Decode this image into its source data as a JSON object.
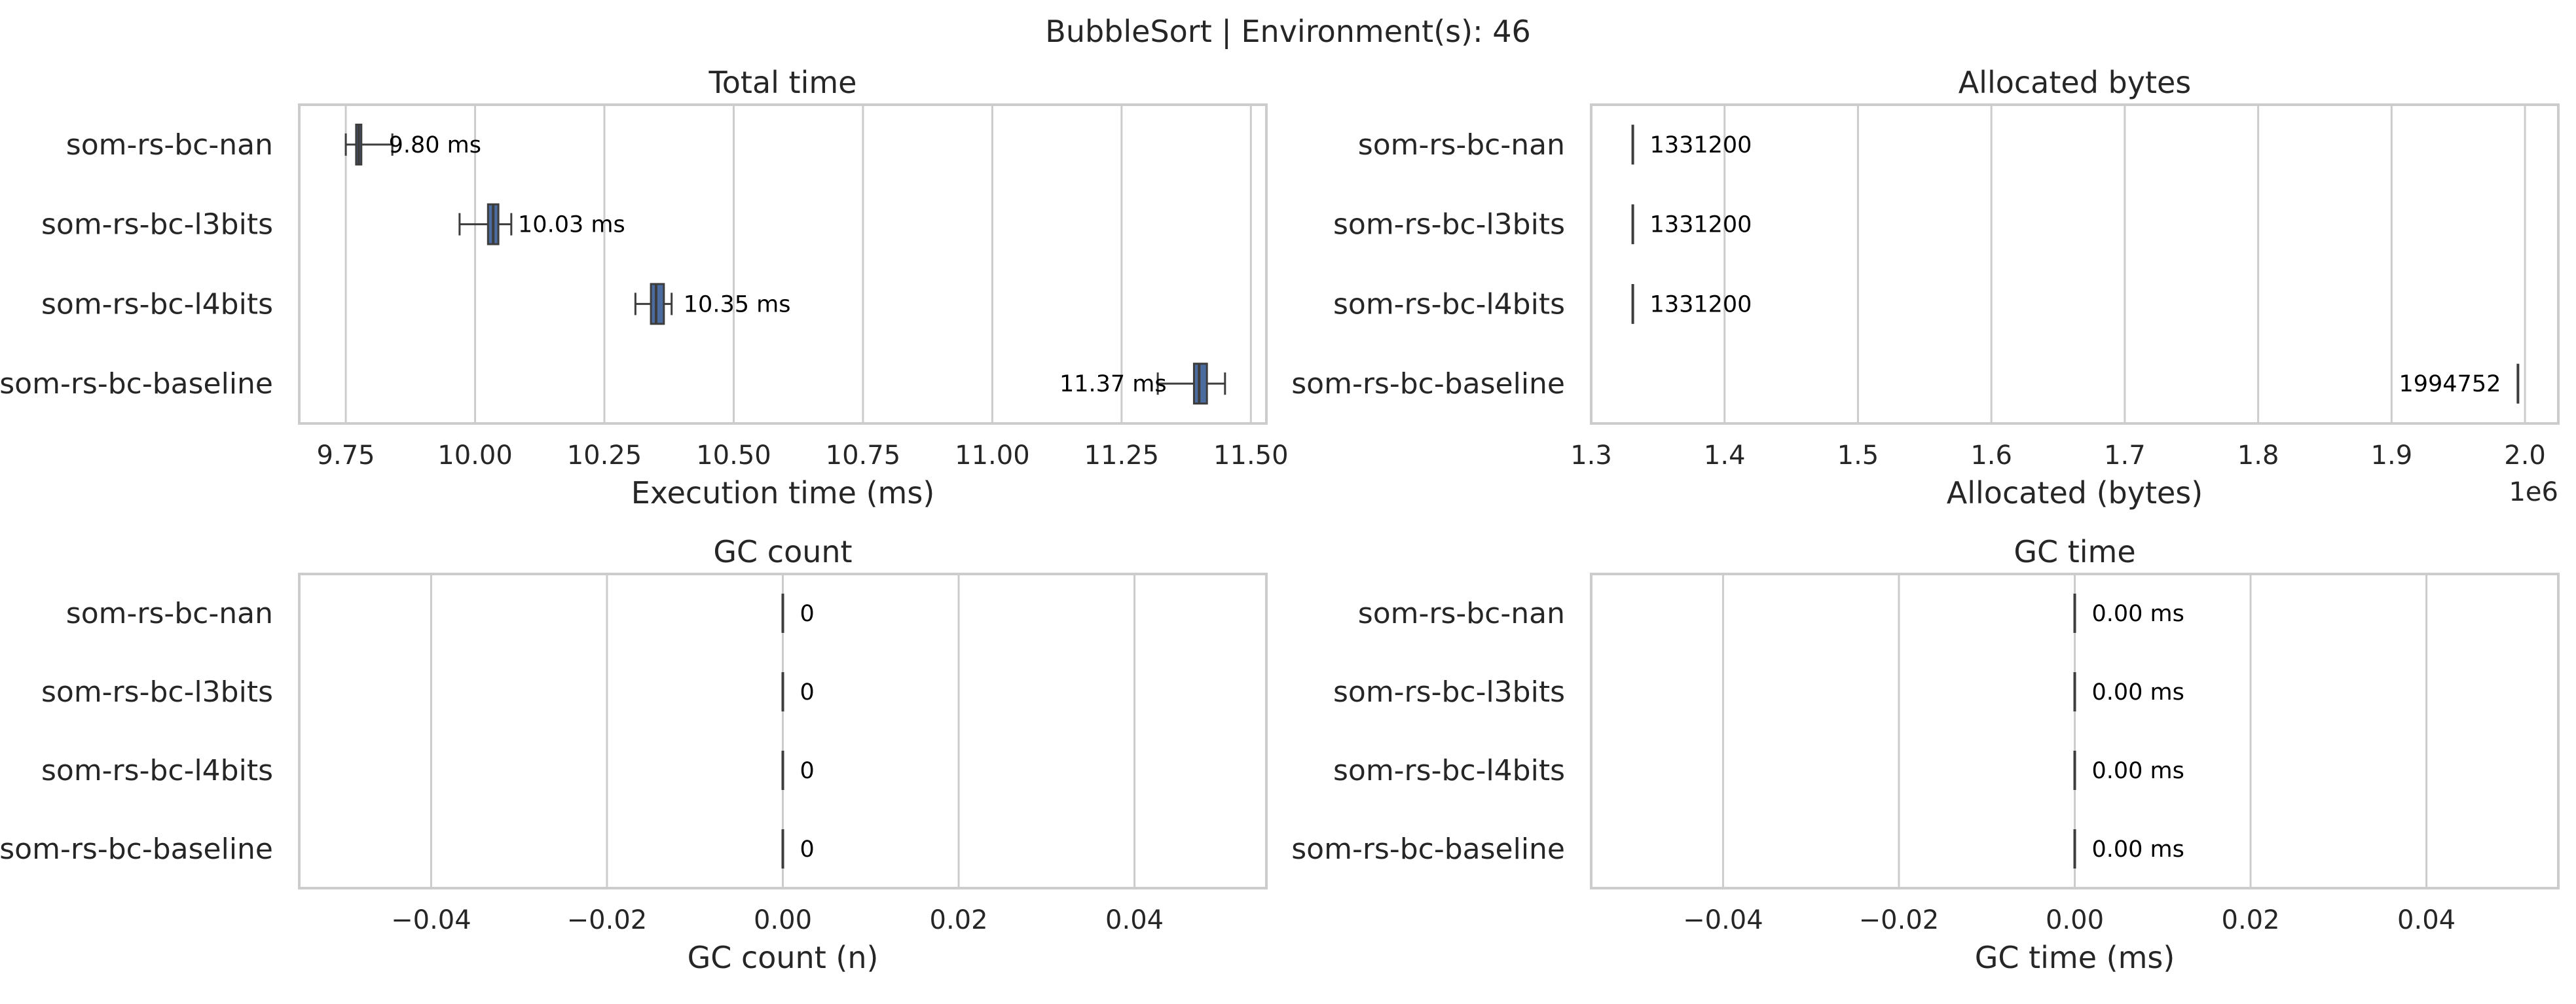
{
  "figure": {
    "title": "BubbleSort | Environment(s): 46"
  },
  "colors": {
    "box_fill": "#4c6b9f",
    "box_edge": "#3d3d3d",
    "grid": "#cccccc",
    "frame": "#cccccc"
  },
  "chart_data": [
    {
      "type": "box",
      "title": "Total time",
      "xlabel": "Execution time (ms)",
      "xlim": [
        9.66,
        11.53
      ],
      "xticks": [
        9.75,
        10.0,
        10.25,
        10.5,
        10.75,
        11.0,
        11.25,
        11.5
      ],
      "xtick_labels": [
        "9.75",
        "10.00",
        "10.25",
        "10.50",
        "10.75",
        "11.00",
        "11.25",
        "11.50"
      ],
      "offset_label": "",
      "categories": [
        "som-rs-bc-nan",
        "som-rs-bc-l3bits",
        "som-rs-bc-l4bits",
        "som-rs-bc-baseline"
      ],
      "boxes": [
        {
          "min": 9.75,
          "q1": 9.77,
          "median": 9.775,
          "q3": 9.78,
          "max": 9.84
        },
        {
          "min": 9.97,
          "q1": 10.025,
          "median": 10.035,
          "q3": 10.045,
          "max": 10.07
        },
        {
          "min": 10.31,
          "q1": 10.34,
          "median": 10.35,
          "q3": 10.365,
          "max": 10.38
        },
        {
          "min": 11.32,
          "q1": 11.39,
          "median": 11.4,
          "q3": 11.415,
          "max": 11.45
        }
      ],
      "labels": [
        {
          "text": "9.80 ms",
          "x": 9.8,
          "side": "right"
        },
        {
          "text": "10.03 ms",
          "x": 10.05,
          "side": "right"
        },
        {
          "text": "10.35 ms",
          "x": 10.37,
          "side": "right"
        },
        {
          "text": "11.37 ms",
          "x": 11.37,
          "side": "left"
        }
      ]
    },
    {
      "type": "box",
      "title": "Allocated bytes",
      "xlabel": "Allocated (bytes)",
      "xlim": [
        1300000,
        2025000
      ],
      "xticks": [
        1300000,
        1400000,
        1500000,
        1600000,
        1700000,
        1800000,
        1900000,
        2000000
      ],
      "xtick_labels": [
        "1.3",
        "1.4",
        "1.5",
        "1.6",
        "1.7",
        "1.8",
        "1.9",
        "2.0"
      ],
      "offset_label": "1e6",
      "categories": [
        "som-rs-bc-nan",
        "som-rs-bc-l3bits",
        "som-rs-bc-l4bits",
        "som-rs-bc-baseline"
      ],
      "boxes": [
        {
          "min": 1331200,
          "q1": 1331200,
          "median": 1331200,
          "q3": 1331200,
          "max": 1331200
        },
        {
          "min": 1331200,
          "q1": 1331200,
          "median": 1331200,
          "q3": 1331200,
          "max": 1331200
        },
        {
          "min": 1331200,
          "q1": 1331200,
          "median": 1331200,
          "q3": 1331200,
          "max": 1331200
        },
        {
          "min": 1994752,
          "q1": 1994752,
          "median": 1994752,
          "q3": 1994752,
          "max": 1994752
        }
      ],
      "labels": [
        {
          "text": "1331200",
          "x": 1331200,
          "side": "right"
        },
        {
          "text": "1331200",
          "x": 1331200,
          "side": "right"
        },
        {
          "text": "1331200",
          "x": 1331200,
          "side": "right"
        },
        {
          "text": "1994752",
          "x": 1994752,
          "side": "left"
        }
      ]
    },
    {
      "type": "box",
      "title": "GC count",
      "xlabel": "GC count (n)",
      "xlim": [
        -0.055,
        0.055
      ],
      "xticks": [
        -0.04,
        -0.02,
        0.0,
        0.02,
        0.04
      ],
      "xtick_labels": [
        "−0.04",
        "−0.02",
        "0.00",
        "0.02",
        "0.04"
      ],
      "offset_label": "",
      "categories": [
        "som-rs-bc-nan",
        "som-rs-bc-l3bits",
        "som-rs-bc-l4bits",
        "som-rs-bc-baseline"
      ],
      "boxes": [
        {
          "min": 0,
          "q1": 0,
          "median": 0,
          "q3": 0,
          "max": 0
        },
        {
          "min": 0,
          "q1": 0,
          "median": 0,
          "q3": 0,
          "max": 0
        },
        {
          "min": 0,
          "q1": 0,
          "median": 0,
          "q3": 0,
          "max": 0
        },
        {
          "min": 0,
          "q1": 0,
          "median": 0,
          "q3": 0,
          "max": 0
        }
      ],
      "labels": [
        {
          "text": "0",
          "x": 0,
          "side": "right"
        },
        {
          "text": "0",
          "x": 0,
          "side": "right"
        },
        {
          "text": "0",
          "x": 0,
          "side": "right"
        },
        {
          "text": "0",
          "x": 0,
          "side": "right"
        }
      ]
    },
    {
      "type": "box",
      "title": "GC time",
      "xlabel": "GC time (ms)",
      "xlim": [
        -0.055,
        0.055
      ],
      "xticks": [
        -0.04,
        -0.02,
        0.0,
        0.02,
        0.04
      ],
      "xtick_labels": [
        "−0.04",
        "−0.02",
        "0.00",
        "0.02",
        "0.04"
      ],
      "offset_label": "",
      "categories": [
        "som-rs-bc-nan",
        "som-rs-bc-l3bits",
        "som-rs-bc-l4bits",
        "som-rs-bc-baseline"
      ],
      "boxes": [
        {
          "min": 0,
          "q1": 0,
          "median": 0,
          "q3": 0,
          "max": 0
        },
        {
          "min": 0,
          "q1": 0,
          "median": 0,
          "q3": 0,
          "max": 0
        },
        {
          "min": 0,
          "q1": 0,
          "median": 0,
          "q3": 0,
          "max": 0
        },
        {
          "min": 0,
          "q1": 0,
          "median": 0,
          "q3": 0,
          "max": 0
        }
      ],
      "labels": [
        {
          "text": "0.00 ms",
          "x": 0,
          "side": "right"
        },
        {
          "text": "0.00 ms",
          "x": 0,
          "side": "right"
        },
        {
          "text": "0.00 ms",
          "x": 0,
          "side": "right"
        },
        {
          "text": "0.00 ms",
          "x": 0,
          "side": "right"
        }
      ]
    }
  ]
}
